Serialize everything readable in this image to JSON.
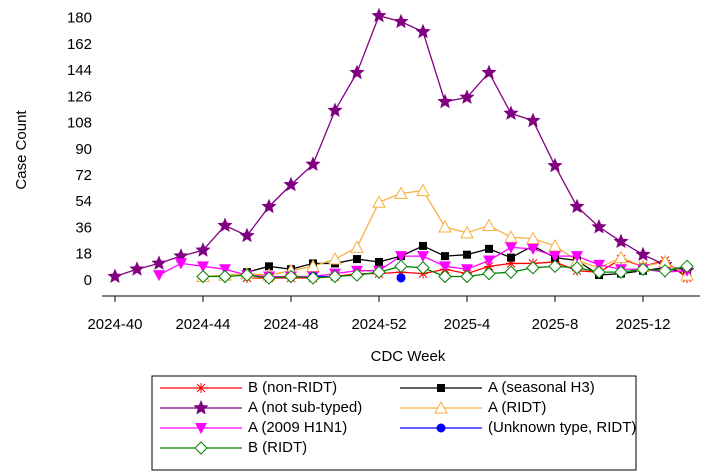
{
  "chart_data": {
    "type": "line",
    "x_label": "CDC Week",
    "y_label": "Case Count",
    "categories": [
      "2024-40",
      null,
      null,
      null,
      "2024-44",
      null,
      null,
      null,
      "2024-48",
      null,
      null,
      null,
      "2024-52",
      null,
      null,
      null,
      "2025-4",
      null,
      null,
      null,
      "2025-8",
      null,
      null,
      null,
      "2025-12",
      null,
      null
    ],
    "ylim": [
      -9,
      186
    ],
    "yticks": [
      0,
      18,
      36,
      54,
      72,
      90,
      108,
      126,
      144,
      162,
      180
    ],
    "legend": "bottom",
    "series": [
      {
        "name": "B (non-RIDT)",
        "color": "#ff0000",
        "marker": "asterisk",
        "values": [
          null,
          null,
          null,
          null,
          null,
          null,
          2,
          2,
          2,
          2,
          3,
          5,
          5,
          6,
          5,
          8,
          5,
          10,
          12,
          12,
          13,
          7,
          6,
          15,
          10,
          14,
          2
        ]
      },
      {
        "name": "A (seasonal H3)",
        "color": "#000000",
        "marker": "square",
        "values": [
          null,
          null,
          null,
          null,
          null,
          null,
          6,
          10,
          8,
          12,
          12,
          15,
          13,
          17,
          24,
          17,
          18,
          22,
          16,
          24,
          16,
          14,
          4,
          5,
          7,
          9,
          5
        ]
      },
      {
        "name": "A (not sub-typed)",
        "color": "#800080",
        "marker": "star",
        "values": [
          3,
          8,
          12,
          17,
          21,
          38,
          31,
          51,
          66,
          80,
          117,
          143,
          182,
          178,
          171,
          123,
          126,
          143,
          115,
          110,
          79,
          51,
          37,
          27,
          18,
          11,
          7
        ]
      },
      {
        "name": "A (RIDT)",
        "color": "#f5b041",
        "marker": "triangle",
        "values": [
          null,
          null,
          null,
          null,
          3,
          4,
          5,
          4,
          7,
          10,
          15,
          23,
          54,
          60,
          62,
          37,
          33,
          38,
          30,
          29,
          24,
          14,
          9,
          16,
          10,
          13,
          4
        ]
      },
      {
        "name": "A (2009 H1N1)",
        "color": "#ff00ff",
        "marker": "down-triangle",
        "values": [
          null,
          null,
          4,
          12,
          10,
          8,
          4,
          3,
          3,
          3,
          5,
          7,
          7,
          17,
          17,
          10,
          8,
          14,
          23,
          22,
          17,
          17,
          11,
          8,
          8,
          6,
          7
        ]
      },
      {
        "name": "(Unknown type, RIDT)",
        "color": "#0000ff",
        "marker": "circle",
        "values": [
          null,
          null,
          null,
          null,
          null,
          null,
          null,
          null,
          null,
          3,
          3,
          null,
          null,
          2,
          null,
          null,
          null,
          null,
          null,
          null,
          null,
          null,
          null,
          null,
          null,
          null,
          null
        ]
      },
      {
        "name": "B (RIDT)",
        "color": "#008000",
        "marker": "diamond",
        "values": [
          null,
          null,
          null,
          null,
          3,
          3,
          4,
          2,
          3,
          2,
          3,
          4,
          6,
          10,
          9,
          3,
          3,
          5,
          6,
          9,
          10,
          9,
          6,
          6,
          8,
          7,
          10
        ]
      }
    ]
  }
}
